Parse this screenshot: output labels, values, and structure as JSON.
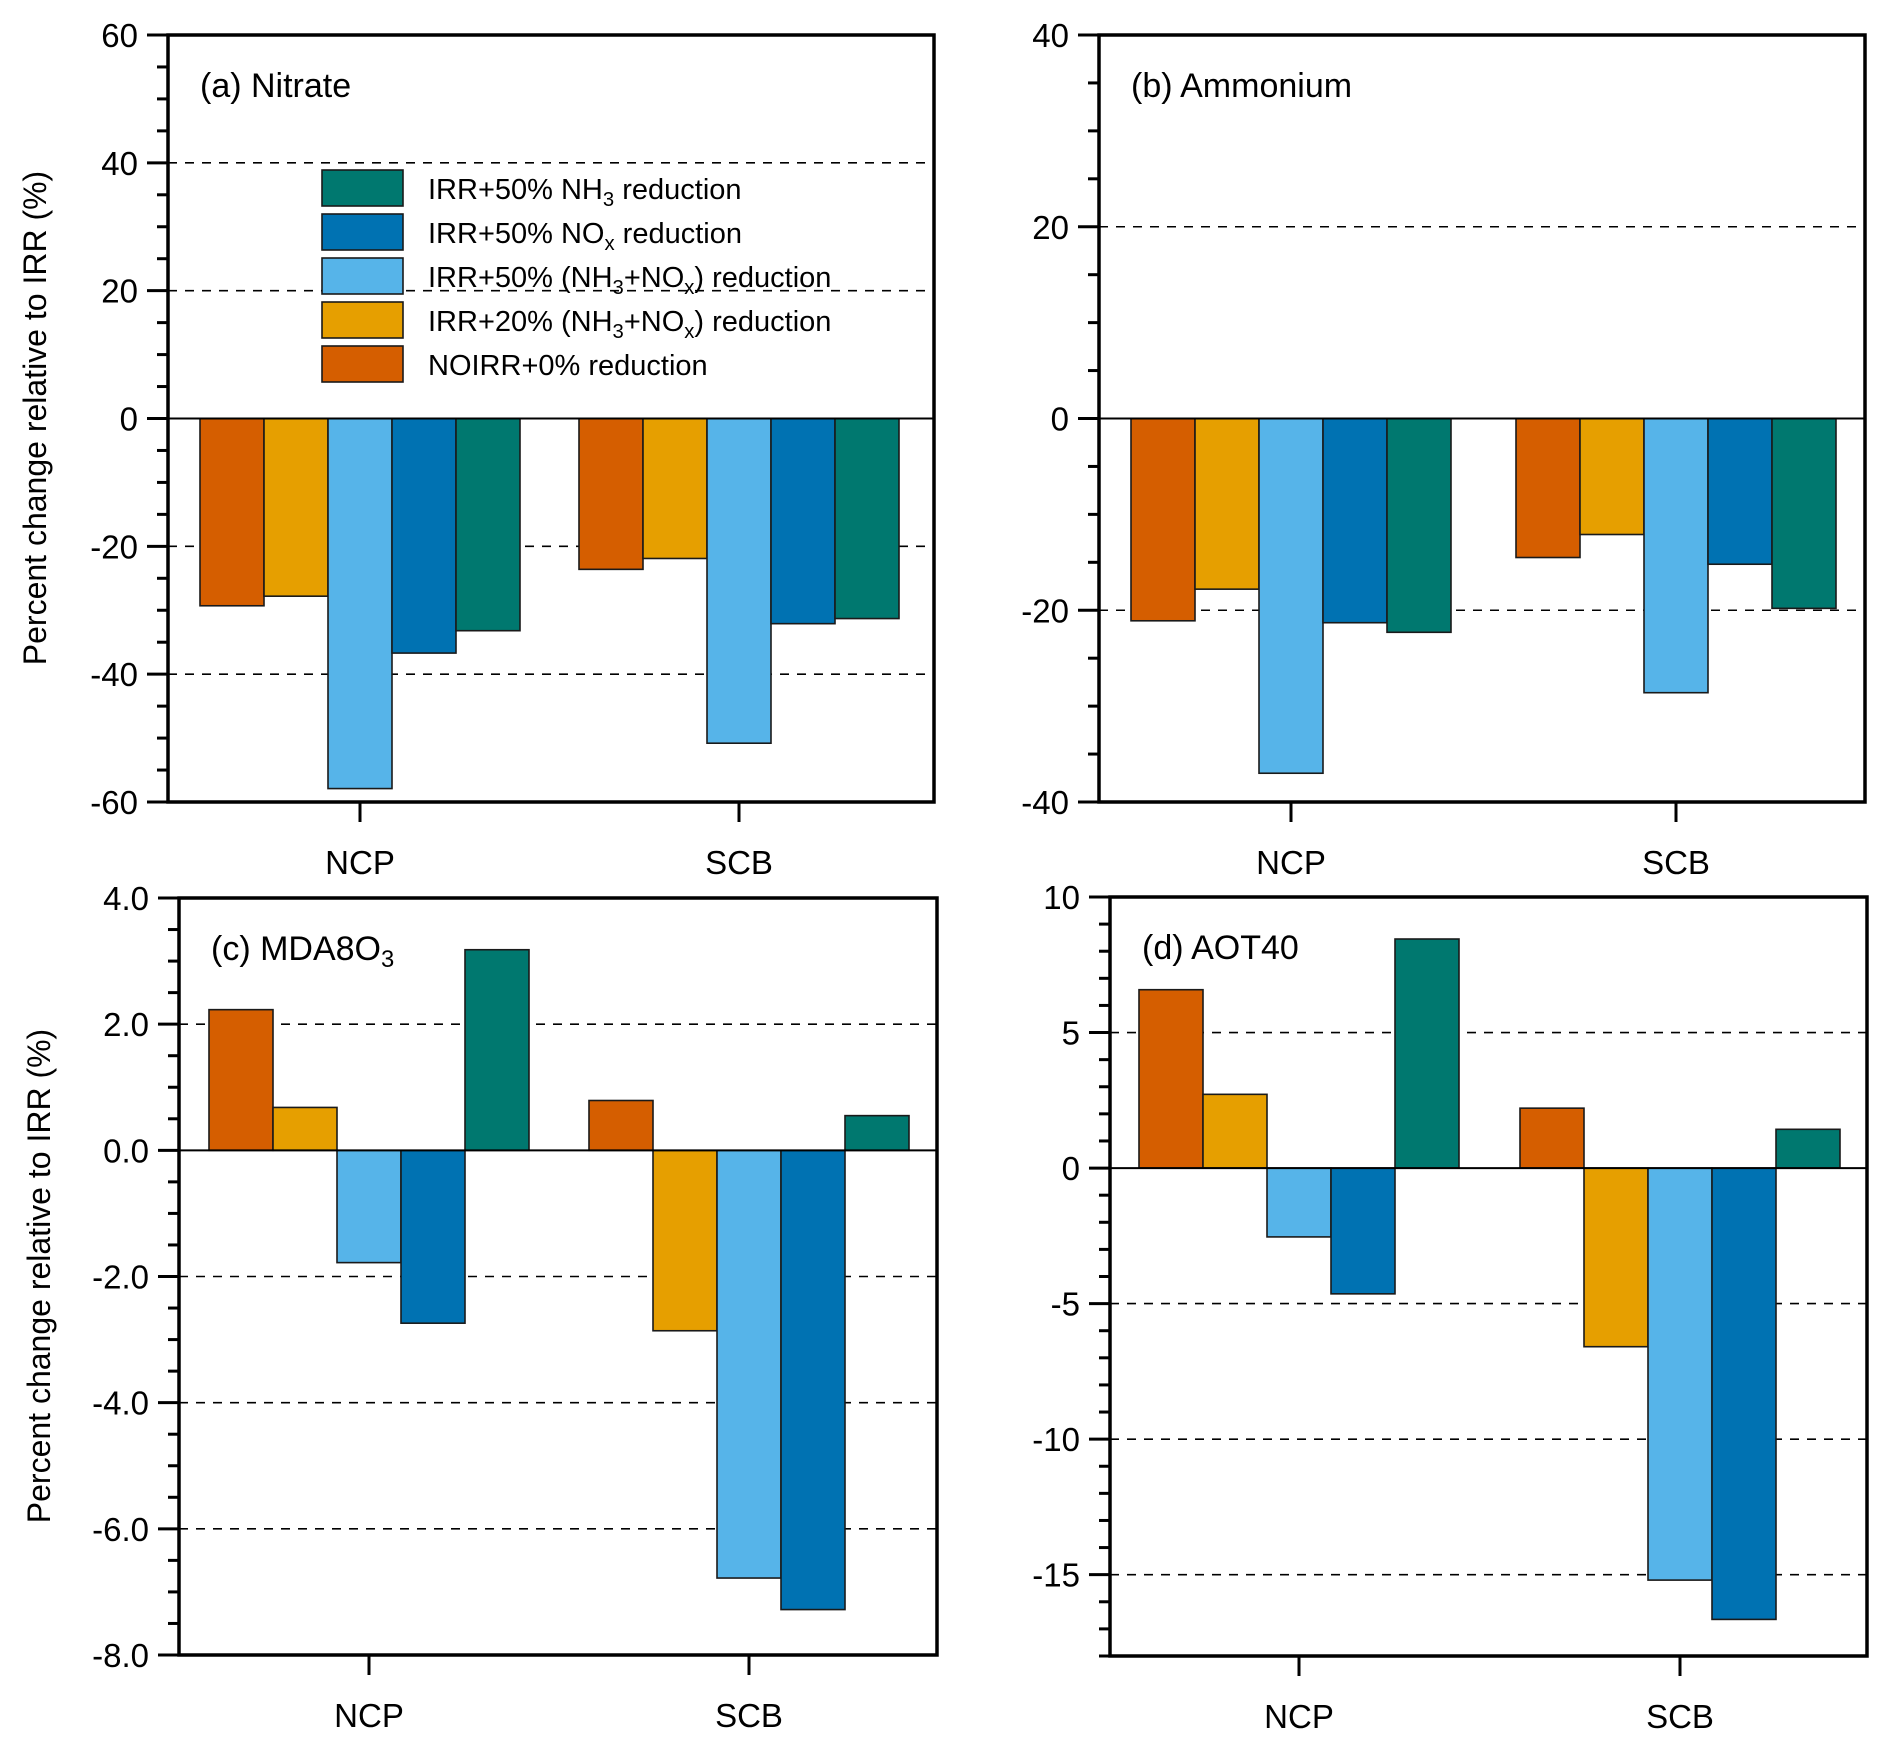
{
  "figure": {
    "shared_ylabel": "Percent change relative to IRR (%)"
  },
  "legend": {
    "entries": [
      {
        "key": "nh3",
        "label_parts": [
          [
            "IRR+50% NH",
            ""
          ],
          [
            "3",
            "sub"
          ],
          [
            " reduction",
            ""
          ]
        ],
        "label": "IRR+50% NH3 reduction",
        "color": "#00786F"
      },
      {
        "key": "nox",
        "label_parts": [
          [
            "IRR+50% NO",
            ""
          ],
          [
            "x",
            "sub"
          ],
          [
            " reduction",
            ""
          ]
        ],
        "label": "IRR+50% NOx reduction",
        "color": "#0072B2"
      },
      {
        "key": "both50",
        "label_parts": [
          [
            "IRR+50% (NH",
            ""
          ],
          [
            "3",
            "sub"
          ],
          [
            "+NO",
            ""
          ],
          [
            "x",
            "sub"
          ],
          [
            ") reduction",
            ""
          ]
        ],
        "label": "IRR+50% (NH3+NOx) reduction",
        "color": "#56B4E9"
      },
      {
        "key": "both20",
        "label_parts": [
          [
            "IRR+20% (NH",
            ""
          ],
          [
            "3",
            "sub"
          ],
          [
            "+NO",
            ""
          ],
          [
            "x",
            "sub"
          ],
          [
            ") reduction",
            ""
          ]
        ],
        "label": "IRR+20% (NH3+NOx) reduction",
        "color": "#E69F00"
      },
      {
        "key": "noirr",
        "label_parts": [
          [
            "NOIRR+0% reduction",
            ""
          ]
        ],
        "label": "NOIRR+0% reduction",
        "color": "#D55E00"
      }
    ],
    "placement": "top-center of panel (a)"
  },
  "chart_data": [
    {
      "type": "bar",
      "panel": "a",
      "title": "(a) Nitrate",
      "title_parts": [
        [
          "(a) Nitrate",
          ""
        ]
      ],
      "categories": [
        "NCP",
        "SCB"
      ],
      "ylabel": "Percent change relative to IRR (%)",
      "xlabel": "",
      "ylim": [
        -60,
        60
      ],
      "yticks": [
        -60,
        -40,
        -20,
        0,
        20,
        40,
        60
      ],
      "ytick_labels": [
        "-60",
        "-40",
        "-20",
        "0",
        "20",
        "40",
        "60"
      ],
      "minor_step": 5,
      "gridlines": [
        -40,
        -20,
        20,
        40
      ],
      "grid": "dashed at major ticks",
      "series": [
        {
          "name": "NOIRR+0% reduction",
          "values": [
            -29.3,
            -23.6
          ]
        },
        {
          "name": "IRR+20% (NH3+NOx) reduction",
          "values": [
            -27.8,
            -21.9
          ]
        },
        {
          "name": "IRR+50% (NH3+NOx) reduction",
          "values": [
            -57.9,
            -50.8
          ]
        },
        {
          "name": "IRR+50% NOx reduction",
          "values": [
            -36.7,
            -32.1
          ]
        },
        {
          "name": "IRR+50% NH3 reduction",
          "values": [
            -33.2,
            -31.3
          ]
        }
      ],
      "legend": "top-center"
    },
    {
      "type": "bar",
      "panel": "b",
      "title": "(b) Ammonium",
      "title_parts": [
        [
          "(b) Ammonium",
          ""
        ]
      ],
      "categories": [
        "NCP",
        "SCB"
      ],
      "ylabel": "",
      "xlabel": "",
      "ylim": [
        -40,
        40
      ],
      "yticks": [
        -40,
        -20,
        0,
        20,
        40
      ],
      "ytick_labels": [
        "-40",
        "-20",
        "0",
        "20",
        "40"
      ],
      "minor_step": 5,
      "gridlines": [
        -20,
        20
      ],
      "grid": "dashed at major ticks",
      "series": [
        {
          "name": "NOIRR+0% reduction",
          "values": [
            -21.1,
            -14.5
          ]
        },
        {
          "name": "IRR+20% (NH3+NOx) reduction",
          "values": [
            -17.8,
            -12.1
          ]
        },
        {
          "name": "IRR+50% (NH3+NOx) reduction",
          "values": [
            -37.0,
            -28.6
          ]
        },
        {
          "name": "IRR+50% NOx reduction",
          "values": [
            -21.3,
            -15.2
          ]
        },
        {
          "name": "IRR+50% NH3 reduction",
          "values": [
            -22.3,
            -19.8
          ]
        }
      ]
    },
    {
      "type": "bar",
      "panel": "c",
      "title": "(c) MDA8O3",
      "title_parts": [
        [
          "(c) MDA8O",
          ""
        ],
        [
          "3",
          "sub"
        ]
      ],
      "categories": [
        "NCP",
        "SCB"
      ],
      "ylabel": "Percent change relative to IRR (%)",
      "xlabel": "",
      "ylim": [
        -8.0,
        4.0
      ],
      "yticks": [
        -8.0,
        -6.0,
        -4.0,
        -2.0,
        0.0,
        2.0,
        4.0
      ],
      "ytick_labels": [
        "-8.0",
        "-6.0",
        "-4.0",
        "-2.0",
        "0.0",
        "2.0",
        "4.0"
      ],
      "minor_step": 0.5,
      "gridlines": [
        -6.0,
        -4.0,
        -2.0,
        2.0
      ],
      "grid": "dashed at major ticks",
      "series": [
        {
          "name": "NOIRR+0% reduction",
          "values": [
            2.23,
            0.79
          ]
        },
        {
          "name": "IRR+20% (NH3+NOx) reduction",
          "values": [
            0.68,
            -2.86
          ]
        },
        {
          "name": "IRR+50% (NH3+NOx) reduction",
          "values": [
            -1.78,
            -6.78
          ]
        },
        {
          "name": "IRR+50% NOx reduction",
          "values": [
            -2.74,
            -7.28
          ]
        },
        {
          "name": "IRR+50% NH3 reduction",
          "values": [
            3.18,
            0.55
          ]
        }
      ]
    },
    {
      "type": "bar",
      "panel": "d",
      "title": "(d) AOT40",
      "title_parts": [
        [
          "(d) AOT40",
          ""
        ]
      ],
      "categories": [
        "NCP",
        "SCB"
      ],
      "ylabel": "",
      "xlabel": "",
      "ylim": [
        -18,
        10
      ],
      "yticks": [
        -15,
        -10,
        -5,
        0,
        5,
        10
      ],
      "ytick_labels": [
        "-15",
        "-10",
        "-5",
        "0",
        "5",
        "10"
      ],
      "minor_step": 1,
      "gridlines": [
        -15,
        -10,
        -5,
        5
      ],
      "grid": "dashed at major ticks",
      "series": [
        {
          "name": "NOIRR+0% reduction",
          "values": [
            6.58,
            2.21
          ]
        },
        {
          "name": "IRR+20% (NH3+NOx) reduction",
          "values": [
            2.72,
            -6.59
          ]
        },
        {
          "name": "IRR+50% (NH3+NOx) reduction",
          "values": [
            -2.54,
            -15.2
          ]
        },
        {
          "name": "IRR+50% NOx reduction",
          "values": [
            -4.64,
            -16.65
          ]
        },
        {
          "name": "IRR+50% NH3 reduction",
          "values": [
            8.45,
            1.43
          ]
        }
      ]
    }
  ],
  "series_colors": [
    "#D55E00",
    "#E69F00",
    "#56B4E9",
    "#0072B2",
    "#00786F"
  ]
}
